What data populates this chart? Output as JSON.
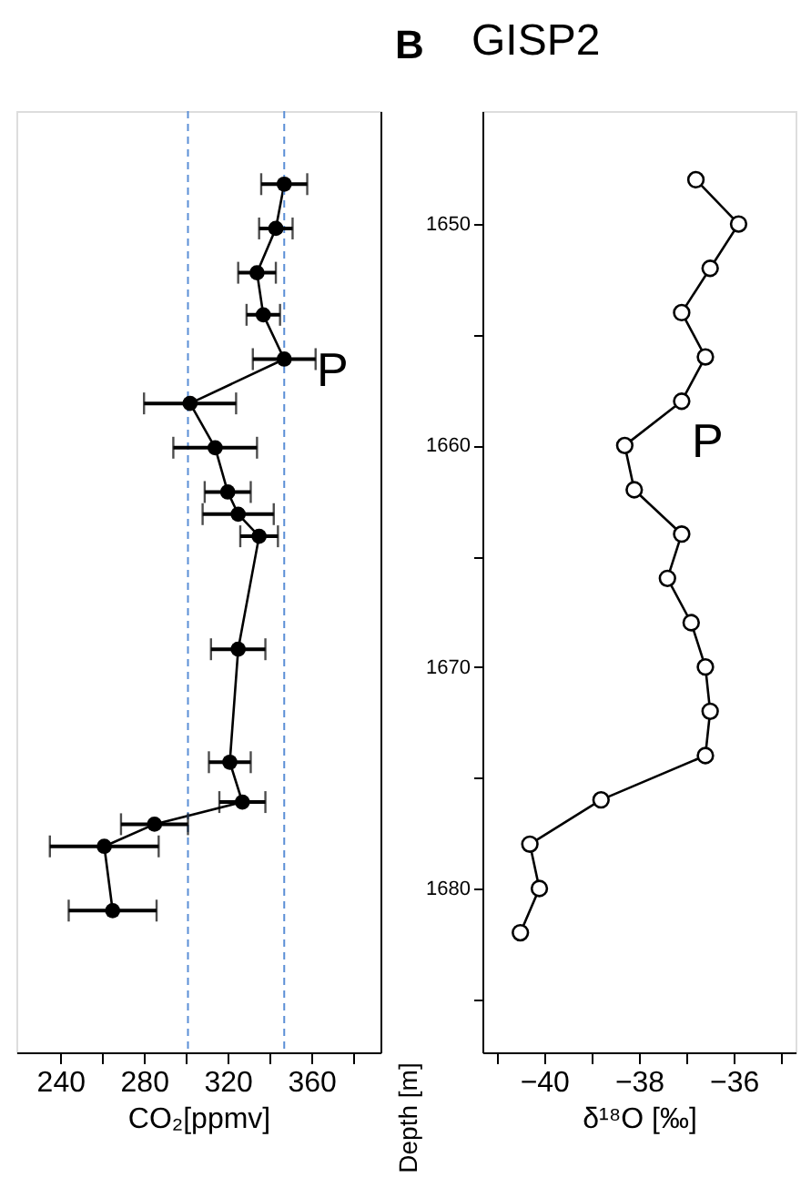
{
  "chart_data": [
    {
      "type": "line",
      "orientation": "horizontal",
      "marker": "circle",
      "xlabel": "CO₂[ppmv]",
      "color": "#000000",
      "x": [
        1648.2,
        1650.2,
        1652.2,
        1654.1,
        1656.1,
        1658.1,
        1660.1,
        1662.1,
        1663.1,
        1664.1,
        1669.2,
        1674.3,
        1676.1,
        1677.1,
        1678.1,
        1681.0
      ],
      "values": [
        347,
        343,
        334,
        337,
        347,
        302,
        314,
        320,
        325,
        335,
        325,
        321,
        327,
        285,
        261,
        265
      ],
      "errors": [
        11,
        8,
        9,
        8,
        15,
        22,
        20,
        11,
        17,
        9,
        13,
        10,
        11,
        16,
        26,
        21
      ],
      "xlim": [
        219,
        393
      ],
      "xticks": [
        240,
        {
          "value": 260,
          "label": null
        },
        280,
        {
          "value": 300,
          "label": null
        },
        320,
        {
          "value": 340,
          "label": null
        },
        360,
        {
          "value": 380,
          "label": null
        }
      ],
      "ylim": [
        1687.4,
        1644.9
      ],
      "tick_labels": "x",
      "ref_lines": [
        {
          "axis": "x",
          "value": 301,
          "color": "#5b8fd6",
          "line_style": "dashed"
        },
        {
          "axis": "x",
          "value": 347,
          "color": "#5b8fd6",
          "line_style": "dashed"
        }
      ],
      "annotations": [
        "P"
      ]
    },
    {
      "type": "line",
      "orientation": "horizontal",
      "marker": "circle",
      "title": "GISP2",
      "xlabel": "δ¹⁸O [‰]",
      "ylabel": "Depth [m]",
      "color": "#000000",
      "x": [
        1648,
        1650,
        1652,
        1654,
        1656,
        1658,
        1660,
        1662,
        1664,
        1666,
        1668,
        1670,
        1672,
        1674,
        1676,
        1678,
        1680,
        1682
      ],
      "values": [
        -36.8,
        -35.9,
        -36.5,
        -37.1,
        -36.6,
        -37.1,
        -38.3,
        -38.1,
        -37.1,
        -37.4,
        -36.9,
        -36.6,
        -36.5,
        -36.6,
        -38.8,
        -40.3,
        -40.1,
        -40.5
      ],
      "xlim": [
        -41.3,
        -34.7
      ],
      "xticks": [
        {
          "value": -41,
          "label": null
        },
        -40,
        {
          "value": -39,
          "label": null
        },
        -38,
        {
          "value": -37,
          "label": null
        },
        -36,
        {
          "value": -35,
          "label": null
        }
      ],
      "ylim": [
        1687.4,
        1644.9
      ],
      "yticks": [
        1650,
        {
          "value": 1655,
          "label": null
        },
        1660,
        {
          "value": 1665,
          "label": null
        },
        1670,
        {
          "value": 1675,
          "label": null
        },
        1680,
        {
          "value": 1685,
          "label": null
        }
      ],
      "annotations": [
        "B",
        "P"
      ]
    }
  ]
}
